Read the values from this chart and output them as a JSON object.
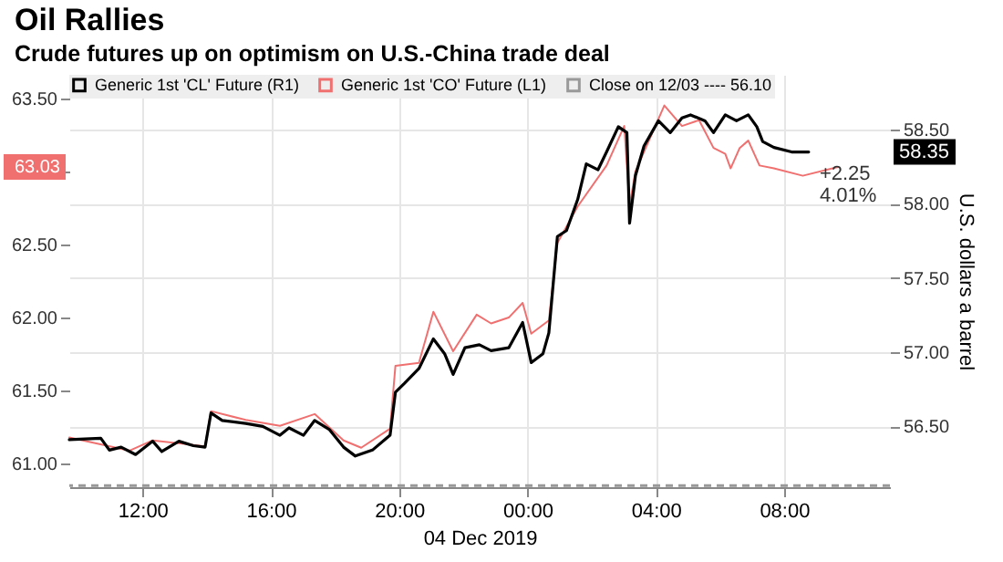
{
  "chart_data": {
    "type": "line",
    "title": "Oil Rallies",
    "subtitle": "Crude futures up on optimism on U.S.-China trade deal",
    "xlabel": "04 Dec 2019",
    "y2label": "U.S. dollars a barrel",
    "annotations": [
      "63.03",
      "58.35",
      "+2.25",
      "4.01%"
    ],
    "xlim": [
      "2019-12-03T09:43",
      "2019-12-04T11:18"
    ],
    "xticks": [
      {
        "value": "2019-12-03T12:00",
        "label": "12:00"
      },
      {
        "value": "2019-12-03T16:00",
        "label": "16:00"
      },
      {
        "value": "2019-12-03T20:00",
        "label": "20:00"
      },
      {
        "value": "2019-12-04T00:00",
        "label": "00:00"
      },
      {
        "value": "2019-12-04T04:00",
        "label": "04:00"
      },
      {
        "value": "2019-12-04T08:00",
        "label": "08:00"
      }
    ],
    "ylim": [
      60.84,
      63.66
    ],
    "yticks": [
      {
        "value": 61,
        "label": "61.00"
      },
      {
        "value": 61.5,
        "label": "61.50"
      },
      {
        "value": 62,
        "label": "62.00"
      },
      {
        "value": 62.5,
        "label": "62.50"
      },
      {
        "value": 63,
        "label": null
      },
      {
        "value": 63.5,
        "label": "63.50"
      }
    ],
    "y2lim": [
      56.09,
      58.87
    ],
    "y2ticks": [
      {
        "value": 56.5,
        "label": "56.50"
      },
      {
        "value": 57,
        "label": "57.00"
      },
      {
        "value": 57.5,
        "label": "57.50"
      },
      {
        "value": 58,
        "label": "58.00"
      },
      {
        "value": 58.5,
        "label": "58.50"
      }
    ],
    "grid": true,
    "legend": "top left",
    "ref_lines": [
      {
        "axis": "y2",
        "value": 56.1,
        "label": "Close on 12/03 ---- 56.10",
        "color": "#999999",
        "line_style": "dashed"
      }
    ],
    "series": [
      {
        "name": "Generic 1st 'CL' Future (R1)",
        "color": "#000000",
        "axis": "y2",
        "x": [
          "2019-12-03T09:43",
          "2019-12-03T10:42",
          "2019-12-03T10:58",
          "2019-12-03T11:20",
          "2019-12-03T11:47",
          "2019-12-03T12:19",
          "2019-12-03T12:36",
          "2019-12-03T13:08",
          "2019-12-03T13:35",
          "2019-12-03T13:57",
          "2019-12-03T14:08",
          "2019-12-03T14:29",
          "2019-12-03T15:13",
          "2019-12-03T15:45",
          "2019-12-03T16:17",
          "2019-12-03T16:34",
          "2019-12-03T17:01",
          "2019-12-03T17:22",
          "2019-12-03T17:49",
          "2019-12-03T18:16",
          "2019-12-03T18:38",
          "2019-12-03T19:10",
          "2019-12-03T19:43",
          "2019-12-03T19:53",
          "2019-12-03T20:10",
          "2019-12-03T20:37",
          "2019-12-03T21:04",
          "2019-12-03T21:25",
          "2019-12-03T21:41",
          "2019-12-03T22:03",
          "2019-12-03T22:30",
          "2019-12-03T22:52",
          "2019-12-03T23:25",
          "2019-12-03T23:51",
          "2019-12-04T00:07",
          "2019-12-04T00:29",
          "2019-12-04T00:40",
          "2019-12-04T00:56",
          "2019-12-04T01:13",
          "2019-12-04T01:34",
          "2019-12-04T01:50",
          "2019-12-04T02:12",
          "2019-12-04T02:28",
          "2019-12-04T02:50",
          "2019-12-04T03:06",
          "2019-12-04T03:11",
          "2019-12-04T03:22",
          "2019-12-04T03:38",
          "2019-12-04T04:05",
          "2019-12-04T04:27",
          "2019-12-04T04:49",
          "2019-12-04T05:05",
          "2019-12-04T05:32",
          "2019-12-04T05:48",
          "2019-12-04T06:10",
          "2019-12-04T06:31",
          "2019-12-04T06:53",
          "2019-12-04T07:09",
          "2019-12-04T07:20",
          "2019-12-04T07:41",
          "2019-12-04T08:14",
          "2019-12-04T08:46"
        ],
        "values": [
          56.41,
          56.42,
          56.34,
          56.36,
          56.31,
          56.4,
          56.33,
          56.4,
          56.37,
          56.36,
          56.59,
          56.54,
          56.52,
          56.5,
          56.44,
          56.49,
          56.44,
          56.54,
          56.48,
          56.36,
          56.3,
          56.34,
          56.44,
          56.73,
          56.79,
          56.89,
          57.09,
          56.99,
          56.85,
          57.03,
          57.05,
          57.01,
          57.03,
          57.2,
          56.93,
          56.99,
          57.13,
          57.78,
          57.82,
          58.03,
          58.27,
          58.23,
          58.35,
          58.52,
          58.48,
          57.87,
          58.19,
          58.39,
          58.56,
          58.48,
          58.58,
          58.6,
          58.56,
          58.48,
          58.6,
          58.56,
          58.6,
          58.52,
          58.42,
          58.38,
          58.35,
          58.35
        ]
      },
      {
        "name": "Generic 1st 'CO' Future (L1)",
        "color": "#f07070",
        "x": [
          "2019-12-03T09:43",
          "2019-12-03T11:36",
          "2019-12-03T12:19",
          "2019-12-03T13:57",
          "2019-12-03T14:08",
          "2019-12-03T15:13",
          "2019-12-03T16:17",
          "2019-12-03T17:22",
          "2019-12-03T18:16",
          "2019-12-03T18:49",
          "2019-12-03T19:43",
          "2019-12-03T19:53",
          "2019-12-03T20:37",
          "2019-12-03T21:04",
          "2019-12-03T21:41",
          "2019-12-03T22:25",
          "2019-12-03T22:52",
          "2019-12-03T23:25",
          "2019-12-03T23:51",
          "2019-12-04T00:07",
          "2019-12-04T00:40",
          "2019-12-04T00:56",
          "2019-12-04T01:34",
          "2019-12-04T02:28",
          "2019-12-04T03:01",
          "2019-12-04T03:11",
          "2019-12-04T03:22",
          "2019-12-04T04:16",
          "2019-12-04T04:49",
          "2019-12-04T05:21",
          "2019-12-04T05:48",
          "2019-12-04T06:10",
          "2019-12-04T06:20",
          "2019-12-04T06:37",
          "2019-12-04T06:53",
          "2019-12-04T07:14",
          "2019-12-04T07:41",
          "2019-12-04T08:35",
          "2019-12-04T09:41"
        ],
        "values": [
          61.18,
          61.09,
          61.16,
          61.12,
          61.36,
          61.3,
          61.26,
          61.34,
          61.16,
          61.11,
          61.24,
          61.67,
          61.69,
          62.04,
          61.77,
          62.02,
          61.96,
          62.0,
          62.1,
          61.89,
          61.98,
          62.51,
          62.76,
          63.04,
          63.31,
          62.76,
          63.0,
          63.45,
          63.31,
          63.35,
          63.16,
          63.12,
          63.02,
          63.16,
          63.21,
          63.04,
          63.02,
          62.97,
          63.03
        ]
      }
    ]
  }
}
